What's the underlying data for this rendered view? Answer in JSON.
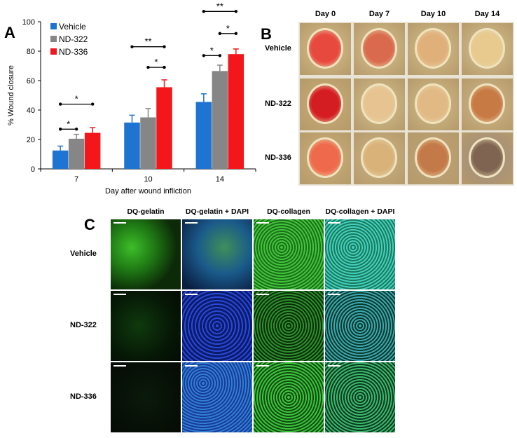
{
  "panels": {
    "a": "A",
    "b": "B",
    "c": "C"
  },
  "chart_data": {
    "type": "bar",
    "categories": [
      "7",
      "10",
      "14"
    ],
    "series": [
      {
        "name": "Vehicle",
        "values": [
          12.5,
          31.5,
          45.5
        ],
        "errors": [
          3,
          5,
          5.5
        ],
        "color": "#1f74d1"
      },
      {
        "name": "ND-322",
        "values": [
          20.5,
          35,
          66.5
        ],
        "errors": [
          3,
          6,
          4
        ],
        "color": "#868686"
      },
      {
        "name": "ND-336",
        "values": [
          24.5,
          55.5,
          78
        ],
        "errors": [
          3.5,
          5,
          3.5
        ],
        "color": "#f3161a"
      }
    ],
    "ylim": [
      0,
      100
    ],
    "yticks": [
      0,
      20,
      40,
      60,
      80,
      100
    ],
    "xlabel": "Day after wound infliction",
    "ylabel": "% Wound closure",
    "legend": "top-left",
    "grid": false,
    "significance": [
      {
        "group": "7",
        "from": "Vehicle",
        "to": "ND-322",
        "label": "*",
        "level": 27
      },
      {
        "group": "7",
        "from": "Vehicle",
        "to": "ND-336",
        "label": "*",
        "level": 44
      },
      {
        "group": "10",
        "from": "ND-322",
        "to": "ND-336",
        "label": "*",
        "level": 69
      },
      {
        "group": "10",
        "from": "Vehicle",
        "to": "ND-336",
        "label": "**",
        "level": 83
      },
      {
        "group": "14",
        "from": "Vehicle",
        "to": "ND-322",
        "label": "*",
        "level": 77
      },
      {
        "group": "14",
        "from": "ND-322",
        "to": "ND-336",
        "label": "*",
        "level": 92
      },
      {
        "group": "14",
        "from": "Vehicle",
        "to": "ND-336",
        "label": "**",
        "level": 107
      }
    ]
  },
  "panel_b": {
    "columns": [
      "Day 0",
      "Day 7",
      "Day 10",
      "Day 14"
    ],
    "rows": [
      "Vehicle",
      "ND-322",
      "ND-336"
    ]
  },
  "panel_c": {
    "columns": [
      "DQ-gelatin",
      "DQ-gelatin + DAPI",
      "DQ-collagen",
      "DQ-collagen + DAPI"
    ],
    "rows": [
      "Vehicle",
      "ND-322",
      "ND-336"
    ]
  }
}
